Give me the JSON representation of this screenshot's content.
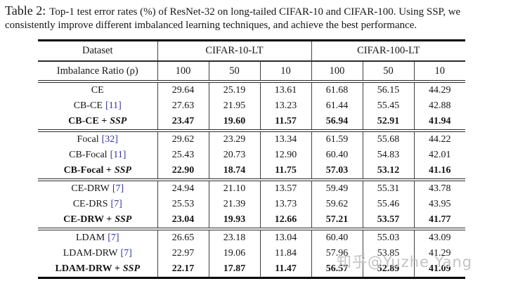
{
  "caption": {
    "label": "Table 2:",
    "text": "Top-1 test error rates (%) of ResNet-32 on long-tailed CIFAR-10 and CIFAR-100. Using SSP, we consistently improve different imbalanced learning techniques, and achieve the best performance."
  },
  "table": {
    "ssp_label": "SSP",
    "header": {
      "dataset_label": "Dataset",
      "group_labels": [
        "CIFAR-10-LT",
        "CIFAR-100-LT"
      ],
      "ratio_label": "Imbalance Ratio (ρ)",
      "ratio_values": [
        "100",
        "50",
        "10",
        "100",
        "50",
        "10"
      ]
    },
    "groups": [
      {
        "rows": [
          {
            "name": "CE",
            "cite": "",
            "ssp": false,
            "bold": false,
            "values": [
              "29.64",
              "25.19",
              "13.61",
              "61.68",
              "56.15",
              "44.29"
            ]
          },
          {
            "name": "CB-CE",
            "cite": "[11]",
            "ssp": false,
            "bold": false,
            "values": [
              "27.63",
              "21.95",
              "13.23",
              "61.44",
              "55.45",
              "42.88"
            ]
          },
          {
            "name": "CB-CE +",
            "cite": "",
            "ssp": true,
            "bold": true,
            "values": [
              "23.47",
              "19.60",
              "11.57",
              "56.94",
              "52.91",
              "41.94"
            ]
          }
        ]
      },
      {
        "rows": [
          {
            "name": "Focal",
            "cite": "[32]",
            "ssp": false,
            "bold": false,
            "values": [
              "29.62",
              "23.29",
              "13.34",
              "61.59",
              "55.68",
              "44.22"
            ]
          },
          {
            "name": "CB-Focal",
            "cite": "[11]",
            "ssp": false,
            "bold": false,
            "values": [
              "25.43",
              "20.73",
              "12.90",
              "60.40",
              "54.83",
              "42.01"
            ]
          },
          {
            "name": "CB-Focal +",
            "cite": "",
            "ssp": true,
            "bold": true,
            "values": [
              "22.90",
              "18.74",
              "11.75",
              "57.03",
              "53.12",
              "41.16"
            ]
          }
        ]
      },
      {
        "rows": [
          {
            "name": "CE-DRW",
            "cite": "[7]",
            "ssp": false,
            "bold": false,
            "values": [
              "24.94",
              "21.10",
              "13.57",
              "59.49",
              "55.31",
              "43.78"
            ]
          },
          {
            "name": "CE-DRS",
            "cite": "[7]",
            "ssp": false,
            "bold": false,
            "values": [
              "25.53",
              "21.39",
              "13.73",
              "59.62",
              "55.46",
              "43.95"
            ]
          },
          {
            "name": "CE-DRW +",
            "cite": "",
            "ssp": true,
            "bold": true,
            "values": [
              "23.04",
              "19.93",
              "12.66",
              "57.21",
              "53.57",
              "41.77"
            ]
          }
        ]
      },
      {
        "rows": [
          {
            "name": "LDAM",
            "cite": "[7]",
            "ssp": false,
            "bold": false,
            "values": [
              "26.65",
              "23.18",
              "13.04",
              "60.40",
              "55.03",
              "43.09"
            ]
          },
          {
            "name": "LDAM-DRW",
            "cite": "[7]",
            "ssp": false,
            "bold": false,
            "values": [
              "22.97",
              "19.06",
              "11.84",
              "57.96",
              "53.85",
              "41.29"
            ]
          },
          {
            "name": "LDAM-DRW +",
            "cite": "",
            "ssp": true,
            "bold": true,
            "values": [
              "22.17",
              "17.87",
              "11.47",
              "56.57",
              "52.89",
              "41.09"
            ]
          }
        ]
      }
    ]
  },
  "watermark": "知乎@Yuzhe Yang",
  "colors": {
    "citation": "#34349a",
    "watermark": "#c3c3c3",
    "text": "#161616"
  }
}
